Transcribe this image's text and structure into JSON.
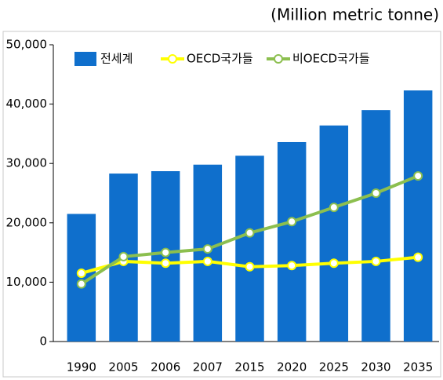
{
  "chart_data": {
    "type": "bar",
    "annotation": "(Million metric tonne)",
    "categories": [
      "1990",
      "2005",
      "2006",
      "2007",
      "2015",
      "2020",
      "2025",
      "2030",
      "2035"
    ],
    "series": [
      {
        "name": "전세계",
        "type": "bar",
        "color": "#0f6fcc",
        "values": [
          21500,
          28300,
          28700,
          29800,
          31300,
          33600,
          36400,
          39000,
          42300
        ]
      },
      {
        "name": "OECD국가들",
        "type": "line",
        "color": "#ffff00",
        "values": [
          11500,
          13500,
          13200,
          13500,
          12600,
          12800,
          13200,
          13500,
          14200
        ]
      },
      {
        "name": "비OECD국가들",
        "type": "line",
        "color": "#8cbf4f",
        "values": [
          9700,
          14300,
          15000,
          15600,
          18300,
          20200,
          22600,
          25000,
          27900
        ]
      }
    ],
    "ylim": [
      0,
      50000
    ],
    "yticks": [
      0,
      {
        "value": 10000,
        "label": "10,000"
      },
      {
        "value": 20000,
        "label": "20,000"
      },
      {
        "value": 30000,
        "label": "30,000"
      },
      {
        "value": 40000,
        "label": "40,000"
      },
      {
        "value": 50000,
        "label": "50,000"
      }
    ],
    "legend": "top"
  }
}
